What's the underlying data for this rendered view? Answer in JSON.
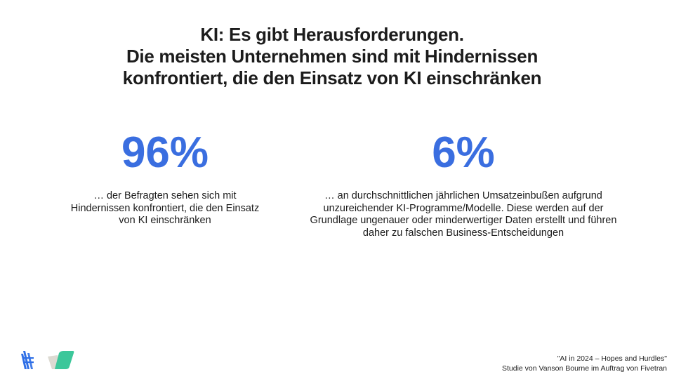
{
  "title": {
    "lines": [
      "KI: Es gibt Herausforderungen.",
      "Die meisten Unternehmen sind mit Hindernissen",
      "konfrontiert, die den Einsatz von KI einschränken"
    ]
  },
  "stats": [
    {
      "value": "96%",
      "description": "… der Befragten sehen sich mit Hindernissen konfrontiert, die den Einsatz von KI einschränken"
    },
    {
      "value": "6%",
      "description": "… an durchschnittlichen jährlichen Umsatzeinbußen aufgrund unzureichender KI-Programme/Modelle. Diese werden auf der Grundlage ungenauer oder minderwertiger Daten erstellt und führen daher zu falschen Business-Entscheidungen"
    }
  ],
  "footer": {
    "line1": "\"AI in 2024 – Hopes and Hurdles\"",
    "line2": "Studie von Vanson Bourne im Auftrag von Fivetran"
  },
  "colors": {
    "accent": "#3a6ee0",
    "logo_blue": "#2f6fe6",
    "logo_green": "#3cc79a",
    "logo_grey": "#dcdad2"
  },
  "logos": [
    "fivetran-logo",
    "partner-logo"
  ]
}
